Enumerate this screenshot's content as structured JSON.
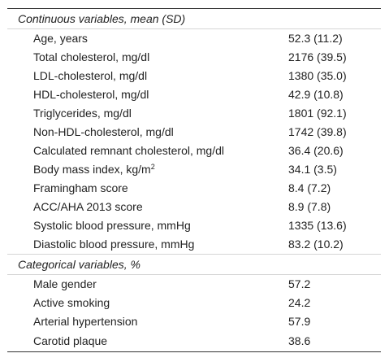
{
  "table": {
    "sections": [
      {
        "title": "Continuous variables, mean (SD)",
        "rows": [
          {
            "label": "Age, years",
            "value": "52.3 (11.2)"
          },
          {
            "label": "Total cholesterol, mg/dl",
            "value": "2176 (39.5)"
          },
          {
            "label": "LDL-cholesterol, mg/dl",
            "value": "1380 (35.0)"
          },
          {
            "label": "HDL-cholesterol, mg/dl",
            "value": "42.9 (10.8)"
          },
          {
            "label": "Triglycerides, mg/dl",
            "value": "1801 (92.1)"
          },
          {
            "label": "Non-HDL-cholesterol, mg/dl",
            "value": "1742 (39.8)"
          },
          {
            "label": "Calculated remnant cholesterol, mg/dl",
            "value": "36.4 (20.6)"
          },
          {
            "label": "Body mass index, kg/m",
            "label_sup": "2",
            "value": "34.1 (3.5)"
          },
          {
            "label": "Framingham score",
            "value": "8.4 (7.2)"
          },
          {
            "label": "ACC/AHA 2013 score",
            "value": "8.9 (7.8)"
          },
          {
            "label": "Systolic blood pressure, mmHg",
            "value": "1335 (13.6)"
          },
          {
            "label": "Diastolic blood pressure, mmHg",
            "value": "83.2 (10.2)"
          }
        ]
      },
      {
        "title": "Categorical variables, %",
        "rows": [
          {
            "label": "Male gender",
            "value": "57.2"
          },
          {
            "label": "Active smoking",
            "value": "24.2"
          },
          {
            "label": "Arterial hypertension",
            "value": "57.9"
          },
          {
            "label": "Carotid plaque",
            "value": "38.6"
          }
        ]
      }
    ]
  }
}
